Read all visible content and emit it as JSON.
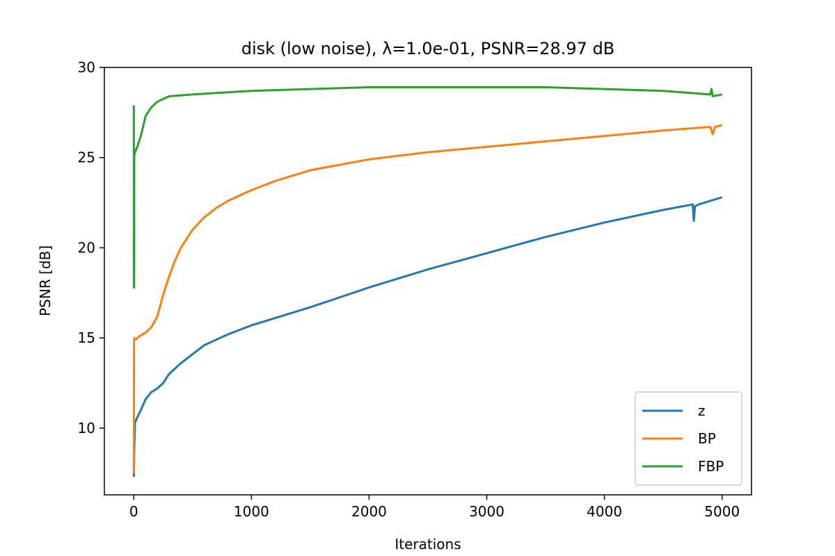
{
  "chart_data": {
    "type": "line",
    "title": "disk (low noise), λ=1.0e-01, PSNR=28.97 dB",
    "xlabel": "Iterations",
    "ylabel": "PSNR [dB]",
    "xlim": [
      -250,
      5250
    ],
    "ylim": [
      6.3,
      30
    ],
    "xticks": [
      0,
      1000,
      2000,
      3000,
      4000,
      5000
    ],
    "yticks": [
      10,
      15,
      20,
      25,
      30
    ],
    "grid": false,
    "legend_position": "lower-right",
    "series": [
      {
        "name": "z",
        "color": "#1f77b4",
        "x": [
          0,
          5,
          10,
          30,
          60,
          100,
          150,
          200,
          250,
          300,
          400,
          500,
          600,
          700,
          800,
          1000,
          1200,
          1500,
          2000,
          2500,
          3000,
          3500,
          4000,
          4500,
          4750,
          4760,
          4770,
          4800,
          5000
        ],
        "y": [
          7.3,
          9.0,
          10.3,
          10.6,
          11.0,
          11.6,
          12.0,
          12.2,
          12.5,
          13.0,
          13.6,
          14.1,
          14.6,
          14.9,
          15.2,
          15.7,
          16.1,
          16.7,
          17.8,
          18.8,
          19.7,
          20.6,
          21.4,
          22.1,
          22.4,
          21.5,
          22.3,
          22.4,
          22.8
        ]
      },
      {
        "name": "BP",
        "color": "#ff7f0e",
        "x": [
          0,
          2,
          5,
          10,
          50,
          100,
          150,
          200,
          250,
          300,
          350,
          400,
          500,
          600,
          700,
          800,
          1000,
          1200,
          1500,
          2000,
          2500,
          3000,
          3500,
          4000,
          4500,
          4900,
          4920,
          4940,
          5000
        ],
        "y": [
          7.5,
          14.8,
          15.0,
          14.9,
          15.1,
          15.3,
          15.6,
          16.2,
          17.4,
          18.4,
          19.3,
          20.0,
          21.0,
          21.7,
          22.2,
          22.6,
          23.2,
          23.7,
          24.3,
          24.9,
          25.3,
          25.6,
          25.9,
          26.2,
          26.5,
          26.7,
          26.3,
          26.7,
          26.8
        ]
      },
      {
        "name": "FBP",
        "color": "#2ca02c",
        "x": [
          0,
          1,
          2,
          3,
          4,
          5,
          10,
          30,
          60,
          100,
          150,
          200,
          300,
          500,
          1000,
          1500,
          2000,
          2500,
          3000,
          3500,
          4000,
          4500,
          4900,
          4910,
          4920,
          5000
        ],
        "y": [
          27.9,
          17.8,
          25.0,
          17.8,
          25.0,
          25.1,
          25.3,
          25.6,
          26.2,
          27.3,
          27.8,
          28.1,
          28.4,
          28.5,
          28.7,
          28.8,
          28.9,
          28.9,
          28.9,
          28.9,
          28.8,
          28.7,
          28.5,
          28.8,
          28.4,
          28.5
        ]
      }
    ]
  }
}
